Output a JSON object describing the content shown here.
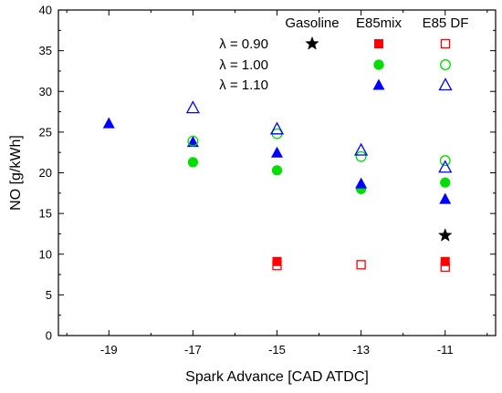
{
  "chart_data": {
    "type": "scatter",
    "xlabel": "Spark Advance [CAD ATDC]",
    "ylabel": "NO [g/kWh]",
    "xlim": [
      -20.2,
      -9.8
    ],
    "ylim": [
      0,
      40
    ],
    "xticks": [
      -19,
      -17,
      -15,
      -13,
      -11
    ],
    "yticks": [
      0,
      5,
      10,
      15,
      20,
      25,
      30,
      35,
      40
    ],
    "legend": {
      "placement": "top-right",
      "column_headers": [
        "Gasoline",
        "E85mix",
        "E85 DF"
      ],
      "row_labels": [
        "λ = 0.90",
        "λ = 1.00",
        "λ = 1.10"
      ]
    },
    "colors": {
      "gasoline": "#000000",
      "lambda_090": "#ff0000",
      "lambda_100": "#00dd00",
      "lambda_110": "#0000ff"
    },
    "series": [
      {
        "fuel": "Gasoline",
        "lambda": "0.90",
        "marker": "star",
        "filled": true,
        "color": "#000000",
        "points": [
          [
            -11,
            12.3
          ]
        ]
      },
      {
        "fuel": "E85mix",
        "lambda": "0.90",
        "marker": "square",
        "filled": true,
        "color": "#ff0000",
        "points": [
          [
            -15,
            9.1
          ],
          [
            -11,
            9.1
          ]
        ]
      },
      {
        "fuel": "E85mix",
        "lambda": "1.00",
        "marker": "circle",
        "filled": true,
        "color": "#00dd00",
        "points": [
          [
            -17,
            21.3
          ],
          [
            -15,
            20.3
          ],
          [
            -13,
            18.0
          ],
          [
            -11,
            18.8
          ]
        ]
      },
      {
        "fuel": "E85mix",
        "lambda": "1.10",
        "marker": "triangle",
        "filled": true,
        "color": "#0000ff",
        "points": [
          [
            -19,
            26.1
          ],
          [
            -17,
            23.8
          ],
          [
            -15,
            22.5
          ],
          [
            -13,
            18.7
          ],
          [
            -11,
            16.8
          ]
        ]
      },
      {
        "fuel": "E85 DF",
        "lambda": "0.90",
        "marker": "square",
        "filled": false,
        "color": "#ff0000",
        "points": [
          [
            -15,
            8.6
          ],
          [
            -13,
            8.7
          ],
          [
            -11,
            8.4
          ]
        ]
      },
      {
        "fuel": "E85 DF",
        "lambda": "1.00",
        "marker": "circle",
        "filled": false,
        "color": "#00dd00",
        "points": [
          [
            -17,
            23.9
          ],
          [
            -15,
            24.8
          ],
          [
            -13,
            22.0
          ],
          [
            -11,
            21.5
          ]
        ]
      },
      {
        "fuel": "E85 DF",
        "lambda": "1.10",
        "marker": "triangle",
        "filled": false,
        "color": "#0000ff",
        "points": [
          [
            -17,
            28.0
          ],
          [
            -15,
            25.4
          ],
          [
            -13,
            22.8
          ],
          [
            -11,
            20.7
          ]
        ]
      }
    ]
  }
}
